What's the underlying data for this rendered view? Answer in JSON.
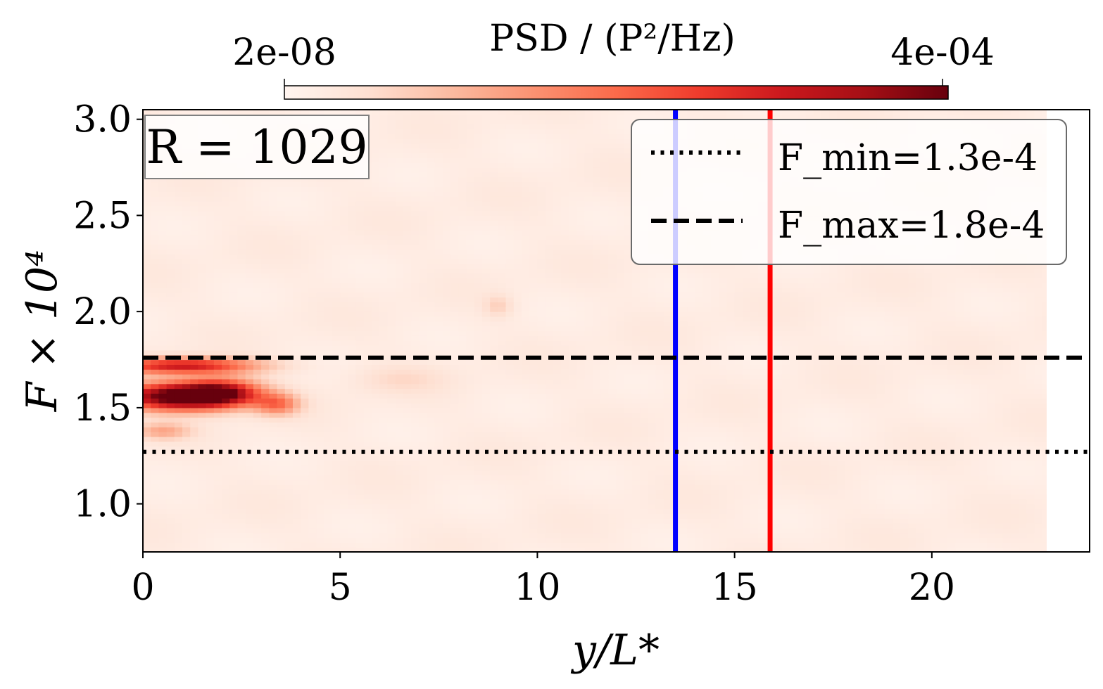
{
  "chart_data": {
    "type": "heatmap",
    "title": "",
    "xlabel": "y/L*",
    "ylabel": "F × 10⁴",
    "xlim": [
      0,
      24
    ],
    "ylim": [
      0.75,
      3.05
    ],
    "x_ticks": [
      0,
      5,
      10,
      15,
      20
    ],
    "x_tick_labels": [
      "0",
      "5",
      "10",
      "15",
      "20"
    ],
    "y_ticks": [
      1.0,
      1.5,
      2.0,
      2.5,
      3.0
    ],
    "y_tick_labels": [
      "1.0",
      "1.5",
      "2.0",
      "2.5",
      "3.0"
    ],
    "data_extent_x": [
      0,
      22.9
    ],
    "colormap": "Reds",
    "colorbar": {
      "title": "PSD / (P²/Hz)",
      "min_label": "2e-08",
      "max_label": "4e-04",
      "min": 2e-08,
      "max": 0.0004
    },
    "annotation": "R = 1029",
    "hotspots": [
      {
        "x": 0.8,
        "y": 1.56,
        "intensity": 1.0,
        "sx": 1.0,
        "sy": 0.05
      },
      {
        "x": 2.0,
        "y": 1.58,
        "intensity": 0.75,
        "sx": 0.7,
        "sy": 0.05
      },
      {
        "x": 1.0,
        "y": 1.72,
        "intensity": 0.7,
        "sx": 1.3,
        "sy": 0.03
      },
      {
        "x": 3.4,
        "y": 1.52,
        "intensity": 0.4,
        "sx": 0.4,
        "sy": 0.04
      },
      {
        "x": 0.5,
        "y": 1.38,
        "intensity": 0.25,
        "sx": 0.5,
        "sy": 0.03
      },
      {
        "x": 9.0,
        "y": 2.03,
        "intensity": 0.12,
        "sx": 0.25,
        "sy": 0.04
      },
      {
        "x": 6.5,
        "y": 1.65,
        "intensity": 0.08,
        "sx": 0.8,
        "sy": 0.05
      }
    ],
    "hlines": [
      {
        "label": "F_min=1.3e-4",
        "y": 1.27,
        "style": "dotted",
        "color": "#000000"
      },
      {
        "label": "F_max=1.8e-4",
        "y": 1.76,
        "style": "dashed",
        "color": "#000000"
      }
    ],
    "vlines": [
      {
        "x": 13.5,
        "color": "#0000ff"
      },
      {
        "x": 15.9,
        "color": "#ff0000"
      }
    ]
  }
}
